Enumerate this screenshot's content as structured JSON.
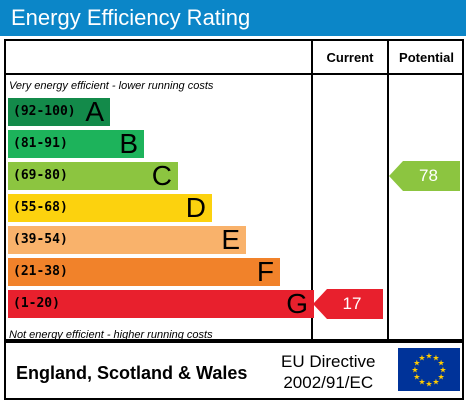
{
  "chart_data": {
    "type": "bar",
    "title": "Energy Efficiency Rating",
    "columns": [
      "Current",
      "Potential"
    ],
    "note_top": "Very energy efficient - lower running costs",
    "note_bottom": "Not energy efficient - higher running costs",
    "bands": [
      {
        "range": "(92-100)",
        "letter": "A",
        "color": "#138a4a",
        "min": 92
      },
      {
        "range": "(81-91)",
        "letter": "B",
        "color": "#1db35b",
        "min": 81
      },
      {
        "range": "(69-80)",
        "letter": "C",
        "color": "#8cc540",
        "min": 69
      },
      {
        "range": "(55-68)",
        "letter": "D",
        "color": "#fcd20e",
        "min": 55
      },
      {
        "range": "(39-54)",
        "letter": "E",
        "color": "#f9b26b",
        "min": 39
      },
      {
        "range": "(21-38)",
        "letter": "F",
        "color": "#f1822a",
        "min": 21
      },
      {
        "range": "(1-20)",
        "letter": "G",
        "color": "#e8202d",
        "min": 1
      }
    ],
    "current": {
      "value": 17,
      "band": "G",
      "color": "#e8202d"
    },
    "potential": {
      "value": 78,
      "band": "C",
      "color": "#8cc540"
    }
  },
  "footer": {
    "region": "England, Scotland & Wales",
    "directive_line1": "EU Directive",
    "directive_line2": "2002/91/EC"
  }
}
